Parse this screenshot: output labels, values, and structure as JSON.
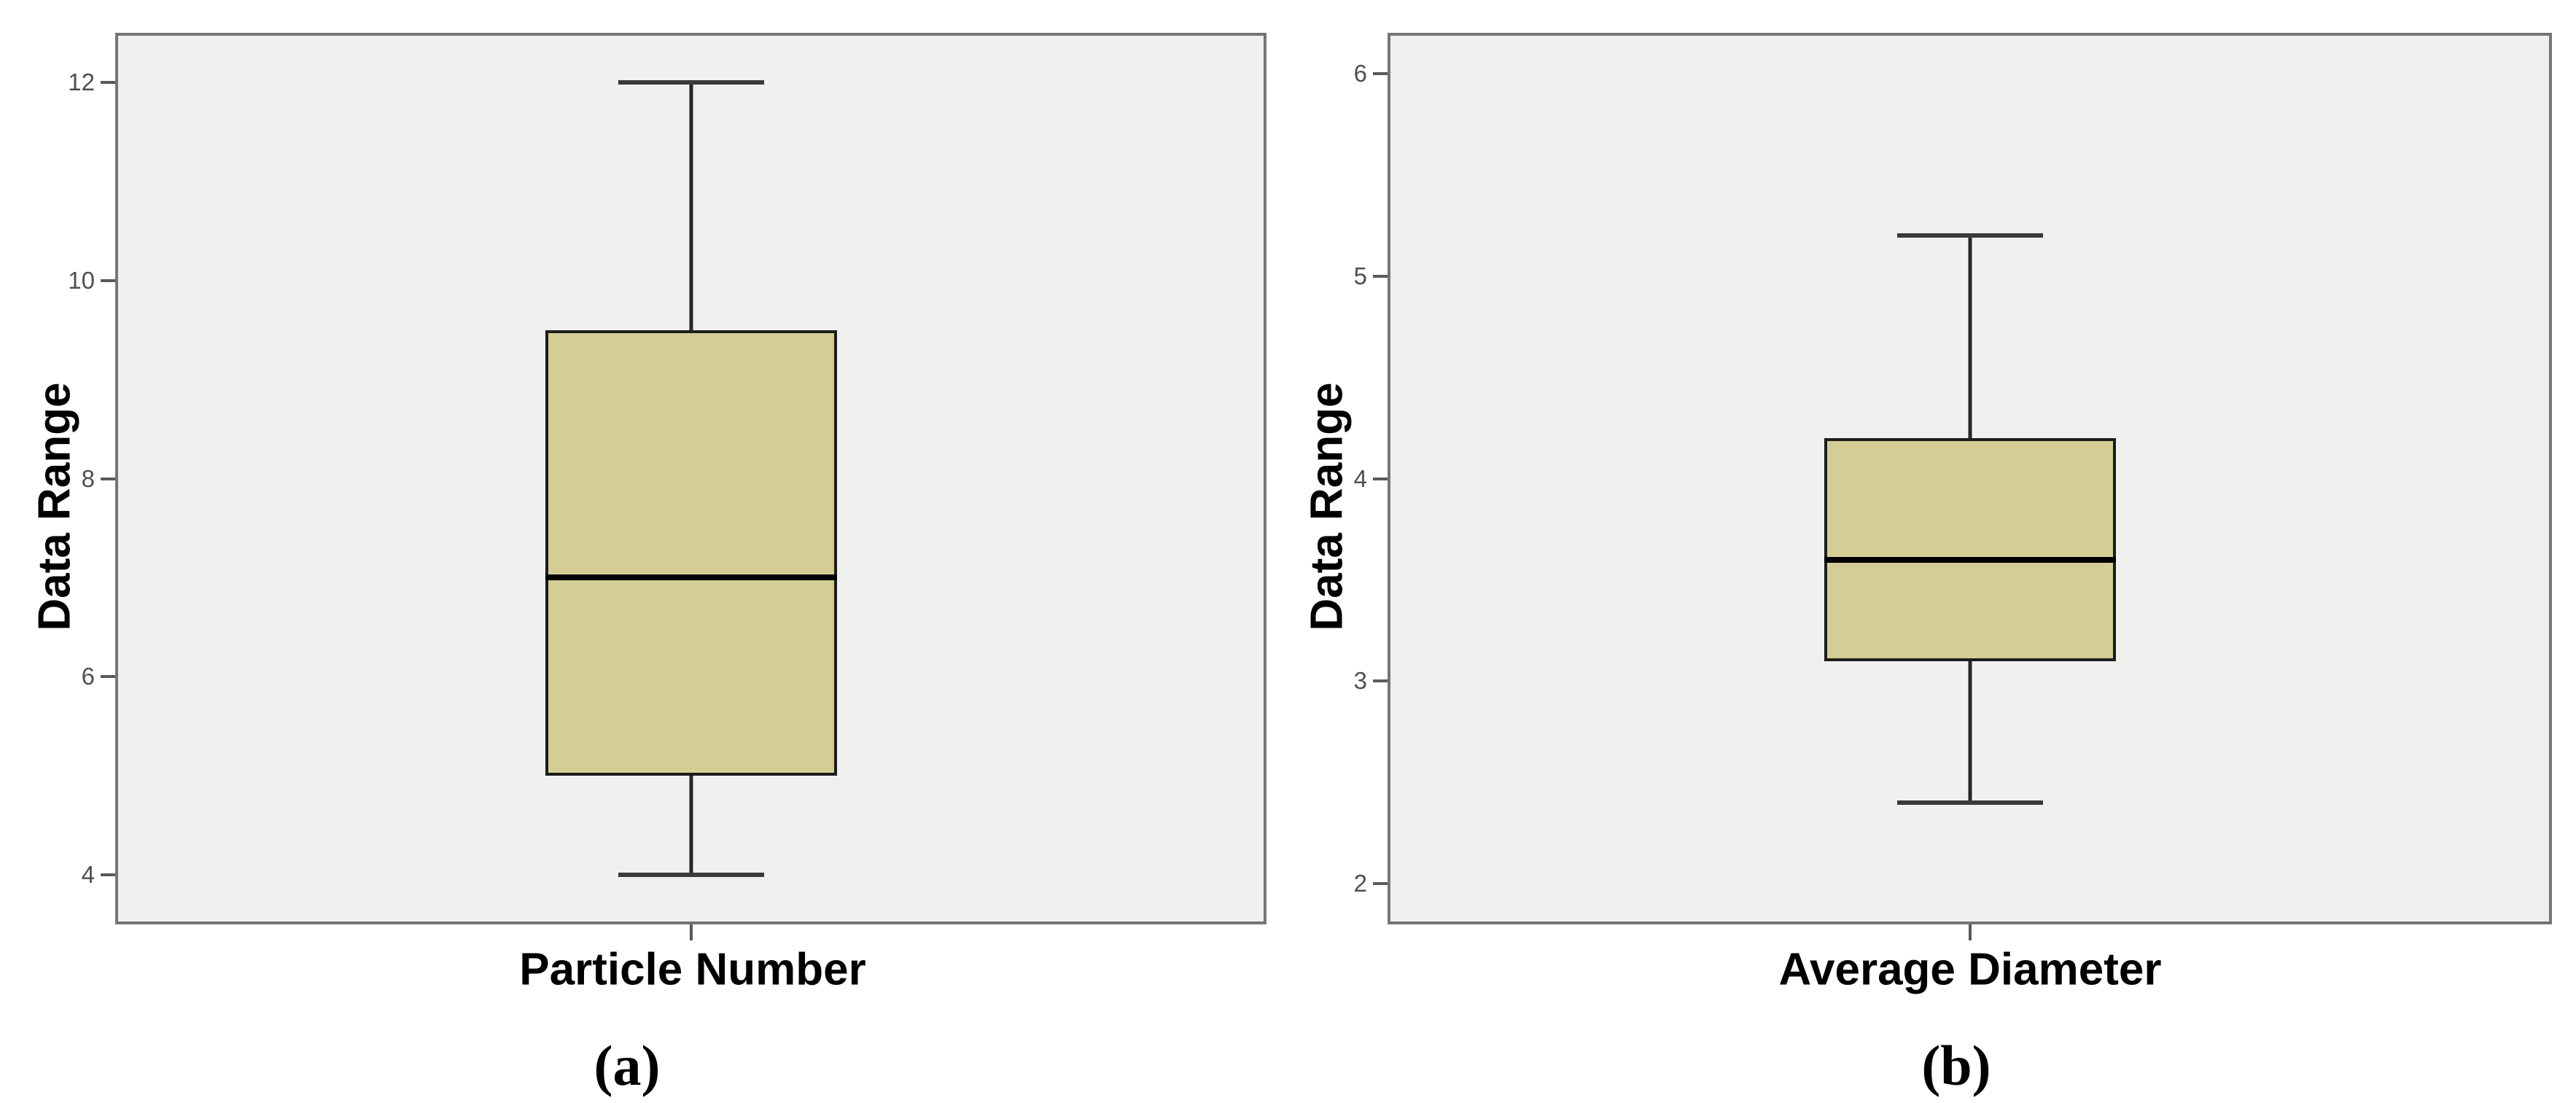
{
  "figure": {
    "description": "Two side-by-side SPSS-style box plots",
    "background": "#ffffff",
    "plot_background": "#f0f0ef",
    "box_fill": "#d5cd96",
    "box_border": "#1c1c1c",
    "axis_color": "#757575"
  },
  "chart_data": [
    {
      "type": "boxplot",
      "title": "",
      "xlabel": "Particle Number",
      "ylabel": "Data Range",
      "caption": "(a)",
      "categories": [
        "Particle Number"
      ],
      "yticks": [
        12,
        10,
        8,
        6,
        4
      ],
      "ylim": [
        3.5,
        12.5
      ],
      "grid": false,
      "legend": false,
      "box": {
        "min": 4,
        "q1": 5,
        "median": 7,
        "q3": 9.5,
        "max": 12
      }
    },
    {
      "type": "boxplot",
      "title": "",
      "xlabel": "Average Diameter",
      "ylabel": "Data Range",
      "caption": "(b)",
      "categories": [
        "Average Diameter"
      ],
      "yticks": [
        6,
        5,
        4,
        3,
        2
      ],
      "ylim": [
        1.8,
        6.2
      ],
      "grid": false,
      "legend": false,
      "box": {
        "min": 2.4,
        "q1": 3.1,
        "median": 3.6,
        "q3": 4.2,
        "max": 5.2
      }
    }
  ]
}
